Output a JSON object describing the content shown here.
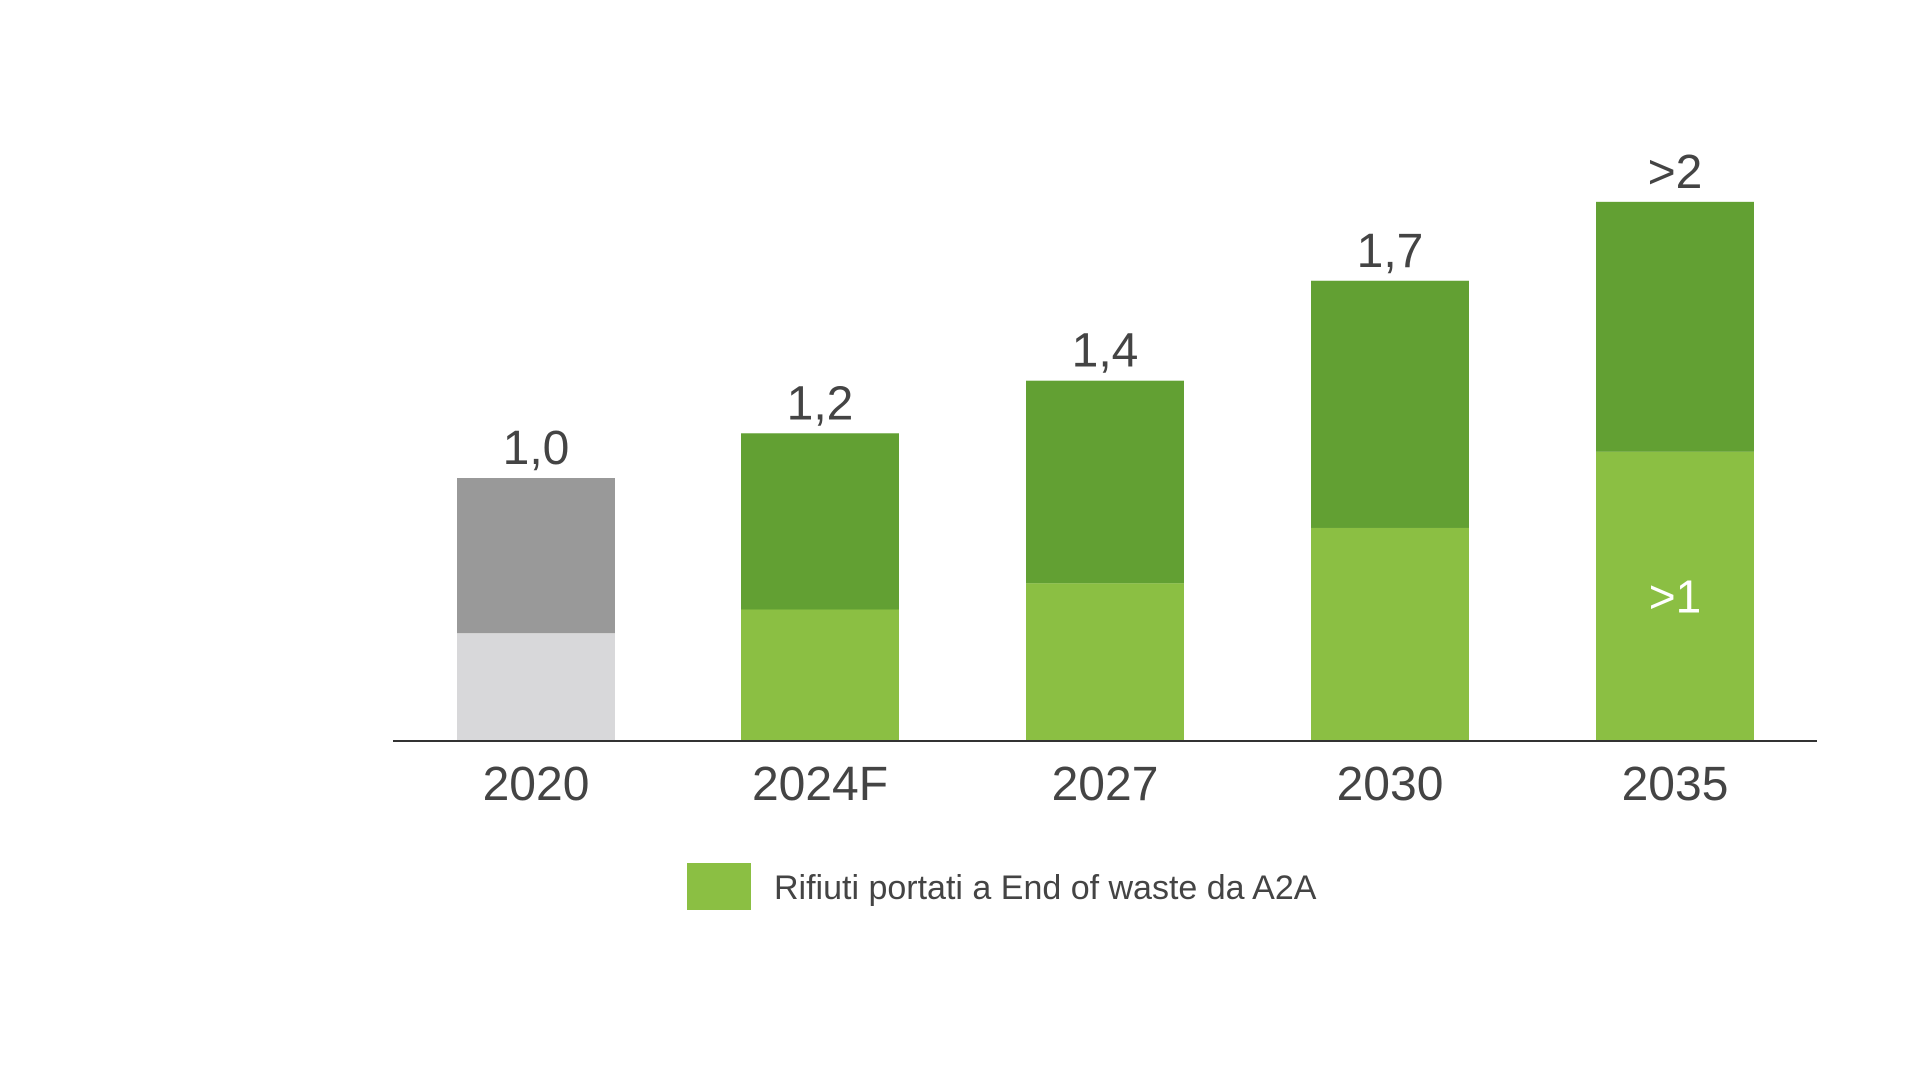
{
  "chart_data": {
    "type": "bar",
    "stacked": true,
    "title": "",
    "xlabel": "",
    "ylabel": "",
    "ylim": [
      0,
      2.4
    ],
    "grid": false,
    "categories": [
      "2020",
      "2024F",
      "2027",
      "2030",
      "2035"
    ],
    "total_labels": [
      "1,0",
      "1,2",
      "1,4",
      "1,7",
      ">2"
    ],
    "series": [
      {
        "name": "Rifiuti portati a End of waste da A2A",
        "values": [
          0.41,
          0.5,
          0.6,
          0.81,
          1.1
        ],
        "colors": [
          "#d8d8da",
          "#8bbf43",
          "#8bbf43",
          "#8bbf43",
          "#8bbf43"
        ],
        "inner_labels": [
          "",
          "",
          "",
          "",
          ">1"
        ]
      },
      {
        "values": [
          0.59,
          0.67,
          0.77,
          0.94,
          0.95
        ],
        "colors": [
          "#999999",
          "#62a033",
          "#62a033",
          "#62a033",
          "#62a033"
        ]
      }
    ],
    "legend": {
      "position": "bottom",
      "entries": [
        {
          "label": "Rifiuti portati a End of waste da A2A",
          "color": "#8bbf43"
        }
      ]
    }
  }
}
